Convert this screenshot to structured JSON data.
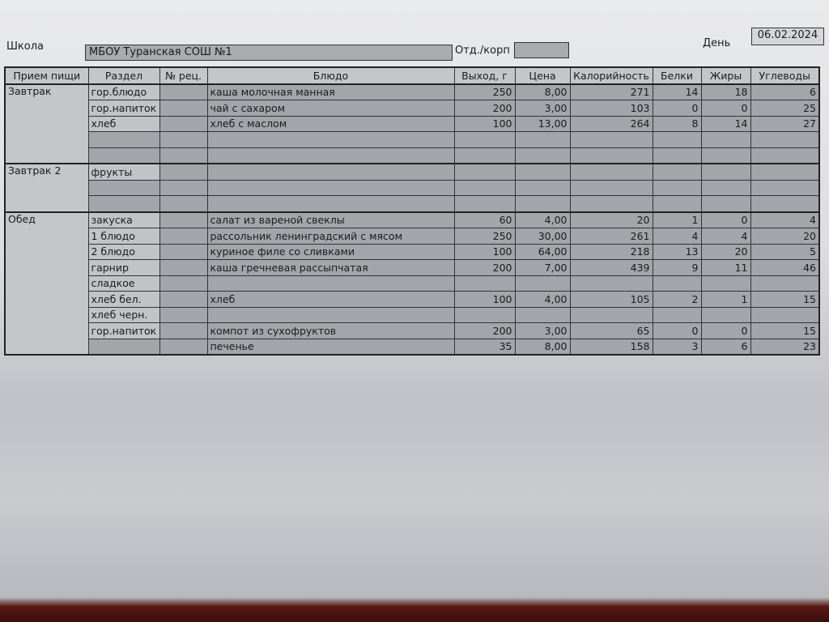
{
  "header": {
    "school_label": "Школа",
    "school_value": "МБОУ Туранская СОШ №1",
    "dept_label": "Отд./корп",
    "dept_value": "",
    "day_label": "День",
    "day_value": "06.02.2024"
  },
  "columns": [
    "Прием пищи",
    "Раздел",
    "№ рец.",
    "Блюдо",
    "Выход, г",
    "Цена",
    "Калорийность",
    "Белки",
    "Жиры",
    "Углеводы"
  ],
  "meals": [
    {
      "name": "Завтрак",
      "rows": [
        [
          "гор.блюдо",
          "",
          "каша молочная манная",
          "250",
          "8,00",
          "271",
          "14",
          "18",
          "6"
        ],
        [
          "гор.напиток",
          "",
          "чай с сахаром",
          "200",
          "3,00",
          "103",
          "0",
          "0",
          "25"
        ],
        [
          "хлеб",
          "",
          "хлеб с маслом",
          "100",
          "13,00",
          "264",
          "8",
          "14",
          "27"
        ],
        [
          "",
          "",
          "",
          "",
          "",
          "",
          "",
          "",
          ""
        ],
        [
          "",
          "",
          "",
          "",
          "",
          "",
          "",
          "",
          ""
        ]
      ]
    },
    {
      "name": "Завтрак 2",
      "rows": [
        [
          "фрукты",
          "",
          "",
          "",
          "",
          "",
          "",
          "",
          ""
        ],
        [
          "",
          "",
          "",
          "",
          "",
          "",
          "",
          "",
          ""
        ],
        [
          "",
          "",
          "",
          "",
          "",
          "",
          "",
          "",
          ""
        ]
      ]
    },
    {
      "name": "Обед",
      "rows": [
        [
          "закуска",
          "",
          "салат из вареной свеклы",
          "60",
          "4,00",
          "20",
          "1",
          "0",
          "4"
        ],
        [
          "1 блюдо",
          "",
          "рассольник ленинградский с мясом",
          "250",
          "30,00",
          "261",
          "4",
          "4",
          "20"
        ],
        [
          "2 блюдо",
          "",
          "куриное филе со сливками",
          "100",
          "64,00",
          "218",
          "13",
          "20",
          "5"
        ],
        [
          "гарнир",
          "",
          "каша гречневая рассыпчатая",
          "200",
          "7,00",
          "439",
          "9",
          "11",
          "46"
        ],
        [
          "сладкое",
          "",
          "",
          "",
          "",
          "",
          "",
          "",
          ""
        ],
        [
          "хлеб бел.",
          "",
          "хлеб",
          "100",
          "4,00",
          "105",
          "2",
          "1",
          "15"
        ],
        [
          "хлеб черн.",
          "",
          "",
          "",
          "",
          "",
          "",
          "",
          ""
        ],
        [
          "гор.напиток",
          "",
          "компот из сухофруктов",
          "200",
          "3,00",
          "65",
          "0",
          "0",
          "15"
        ],
        [
          "",
          "",
          "печенье",
          "35",
          "8,00",
          "158",
          "3",
          "6",
          "23"
        ]
      ]
    }
  ]
}
